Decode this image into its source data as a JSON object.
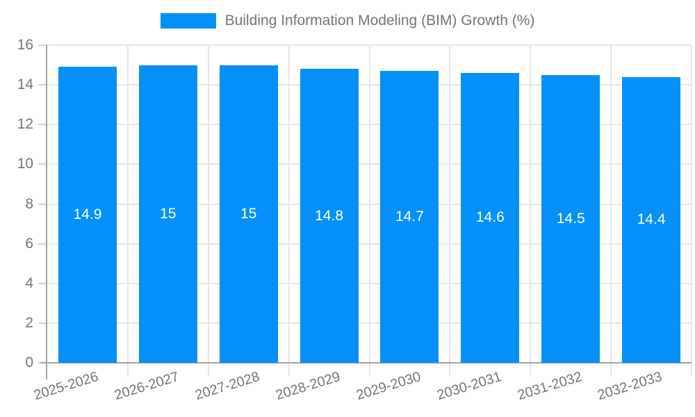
{
  "chart_data": {
    "type": "bar",
    "title": "Building Information Modeling (BIM) Growth (%)",
    "legend": [
      "Building Information Modeling (BIM) Growth (%)"
    ],
    "legend_position": "top-center",
    "categories": [
      "2025-2026",
      "2026-2027",
      "2027-2028",
      "2028-2029",
      "2029-2030",
      "2030-2031",
      "2031-2032",
      "2032-2033"
    ],
    "values": [
      14.9,
      15,
      15,
      14.8,
      14.7,
      14.6,
      14.5,
      14.4
    ],
    "value_labels": [
      "14.9",
      "15",
      "15",
      "14.8",
      "14.7",
      "14.6",
      "14.5",
      "14.4"
    ],
    "xlabel": "",
    "ylabel": "",
    "ylim": [
      0,
      16
    ],
    "yticks": [
      0,
      2,
      4,
      6,
      8,
      10,
      12,
      14,
      16
    ],
    "grid": true,
    "bar_color": "#0590f8",
    "value_label_color": "#ffffff",
    "grid_color": "#e6e6e6",
    "axis_color": "#a2a2a2",
    "tick_text_color": "#757575",
    "background_color": "#ffffff"
  }
}
